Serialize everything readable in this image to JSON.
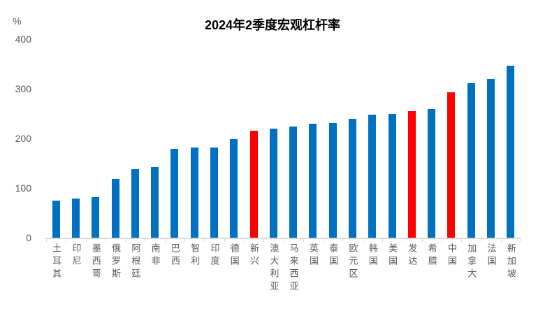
{
  "chart_data": {
    "type": "bar",
    "title": "2024年2季度宏观杠杆率",
    "xlabel": "",
    "ylabel": "%",
    "ylim": [
      0,
      400
    ],
    "y_ticks": [
      0,
      100,
      200,
      300,
      400
    ],
    "grid": false,
    "legend_position": "none",
    "categories": [
      "土耳其",
      "印尼",
      "墨西哥",
      "俄罗斯",
      "阿根廷",
      "南非",
      "巴西",
      "智利",
      "印度",
      "德国",
      "新兴",
      "澳大利亚",
      "马来西亚",
      "英国",
      "泰国",
      "欧元区",
      "韩国",
      "美国",
      "发达",
      "希腊",
      "中国",
      "加拿大",
      "法国",
      "新加坡"
    ],
    "values": [
      75,
      79,
      81,
      119,
      138,
      142,
      179,
      181,
      182,
      199,
      216,
      220,
      224,
      229,
      231,
      239,
      248,
      249,
      255,
      259,
      293,
      311,
      320,
      346
    ],
    "highlighted_categories": [
      "新兴",
      "发达",
      "中国"
    ],
    "highlighted_indices": [
      10,
      18,
      20
    ],
    "colors": {
      "bar_default": "#0070C0",
      "bar_highlight": "#FF0000",
      "axis_line": "#D9D9D9",
      "axis_text": "#595959",
      "title_text": "#000000",
      "background": "#FFFFFF"
    }
  }
}
